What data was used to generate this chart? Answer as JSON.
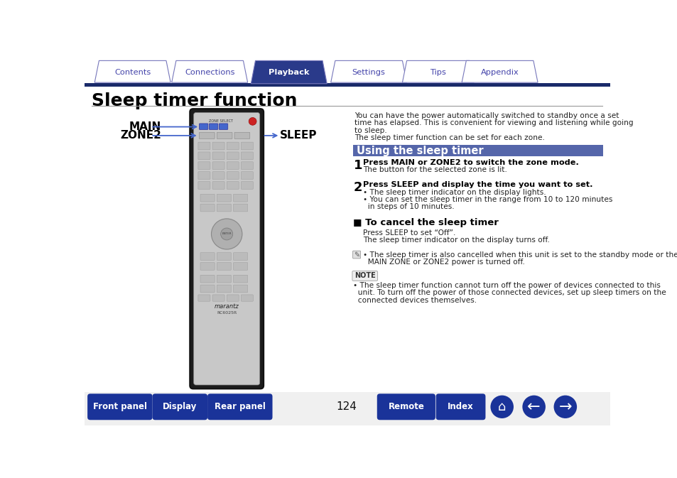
{
  "title": "Sleep timer function",
  "bg_color": "#ffffff",
  "tab_active_bg": "#2a3a8a",
  "tab_active_text": "#ffffff",
  "tab_inactive_bg": "#ffffff",
  "tab_inactive_text": "#4444aa",
  "tab_border_color": "#7777bb",
  "nav_bar_color": "#1a2a6a",
  "section_header_bg": "#5566aa",
  "section_header_text": "Using the sleep timer",
  "section_header_textcolor": "#ffffff",
  "title_color": "#000000",
  "body_text_color": "#222222",
  "main_label": "MAIN",
  "zone2_label": "ZONE2",
  "sleep_label": "SLEEP",
  "intro_text1": "You can have the power automatically switched to standby once a set",
  "intro_text2": "time has elapsed. This is convenient for viewing and listening while going",
  "intro_text3": "to sleep.",
  "intro_text4": "The sleep timer function can be set for each zone.",
  "step1_bold": "Press MAIN or ZONE2 to switch the zone mode.",
  "step1_body": "The button for the selected zone is lit.",
  "step2_bold": "Press SLEEP and display the time you want to set.",
  "step2_b1": "• The sleep timer indicator on the display lights.",
  "step2_b2a": "• You can set the sleep timer in the range from 10 to 120 minutes",
  "step2_b2b": "  in steps of 10 minutes.",
  "cancel_header": "■ To cancel the sleep timer",
  "cancel_line1": "Press SLEEP to set “Off”.",
  "cancel_line2": "The sleep timer indicator on the display turns off.",
  "note_bullet1a": "• The sleep timer is also cancelled when this unit is set to the standby mode or the",
  "note_bullet1b": "  MAIN ZONE or ZONE2 power is turned off.",
  "note_label": "NOTE",
  "note_text1": "• The sleep timer function cannot turn off the power of devices connected to this",
  "note_text2": "  unit. To turn off the power of those connected devices, set up sleep timers on the",
  "note_text3": "  connected devices themselves.",
  "footer_bg": "#1a3399",
  "footer_text": "#ffffff",
  "page_number": "124",
  "arrow_color": "#4466cc",
  "remote_body_color": "#c8c8c8",
  "remote_dark_color": "#1a1a1a",
  "remote_border_color": "#1a1a1a"
}
